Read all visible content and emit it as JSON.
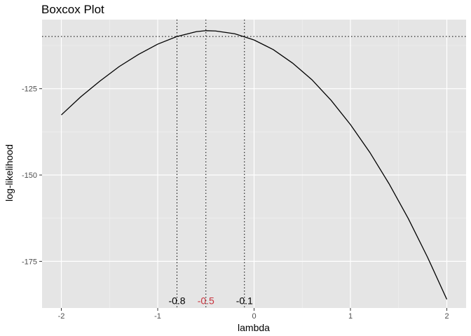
{
  "chart_data": {
    "type": "line",
    "title": "Boxcox Plot",
    "xlabel": "lambda",
    "ylabel": "log-likelihood",
    "xlim": [
      -2.2,
      2.2
    ],
    "ylim": [
      -188.5,
      -105
    ],
    "x_ticks": [
      -2,
      -1,
      0,
      1,
      2
    ],
    "x_tick_labels": [
      "-2",
      "-1",
      "0",
      "1",
      "2"
    ],
    "y_ticks": [
      -125,
      -150,
      -175
    ],
    "y_tick_labels": [
      "-125",
      "-150",
      "-175"
    ],
    "grid": true,
    "background": "#e5e5e5",
    "series": [
      {
        "color": "#000000",
        "x": [
          -2.0,
          -1.8,
          -1.6,
          -1.4,
          -1.2,
          -1.0,
          -0.8,
          -0.6,
          -0.5,
          -0.4,
          -0.2,
          0.0,
          0.2,
          0.4,
          0.6,
          0.8,
          1.0,
          1.2,
          1.4,
          1.6,
          1.8,
          2.0
        ],
        "y": [
          -132.6,
          -127.4,
          -122.8,
          -118.6,
          -115.1,
          -112.1,
          -109.9,
          -108.5,
          -108.2,
          -108.3,
          -109.1,
          -110.9,
          -113.7,
          -117.6,
          -122.4,
          -128.4,
          -135.4,
          -143.4,
          -152.5,
          -162.6,
          -173.8,
          -186.0
        ]
      }
    ],
    "reference_lines": {
      "horizontal_y": -109.9,
      "vertical_x": [
        -0.8,
        -0.5,
        -0.1
      ],
      "style": "dotted"
    },
    "annotations": [
      {
        "x": -0.8,
        "y": -186.4,
        "text": "-0.8",
        "color": "#000000"
      },
      {
        "x": -0.5,
        "y": -186.4,
        "text": "-0.5",
        "color": "#c8323c"
      },
      {
        "x": -0.1,
        "y": -186.4,
        "text": "-0.1",
        "color": "#000000"
      }
    ]
  }
}
